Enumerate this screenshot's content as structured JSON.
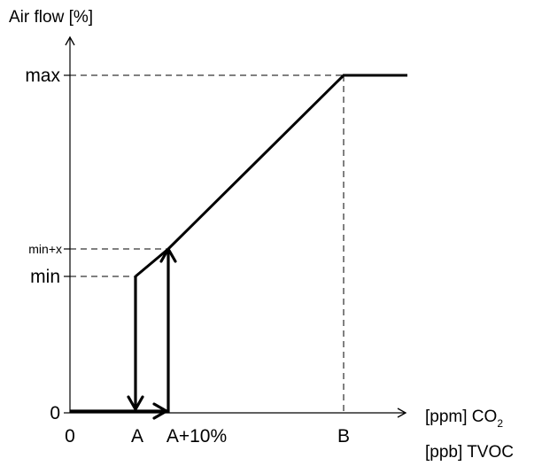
{
  "colors": {
    "line": "#000000",
    "background": "#ffffff"
  },
  "labels": {
    "y_axis": "Air flow [%]",
    "x_axis_co2_prefix": "[ppm] CO",
    "x_axis_co2_subscript": "2",
    "x_axis_tvoc": "[ppb] TVOC"
  },
  "y_ticks": {
    "max": "max",
    "min_plus_x": "min+x",
    "min": "min",
    "zero": "0"
  },
  "x_ticks": {
    "zero": "0",
    "a": "A",
    "a_plus_10": "A+10%",
    "b": "B"
  }
}
